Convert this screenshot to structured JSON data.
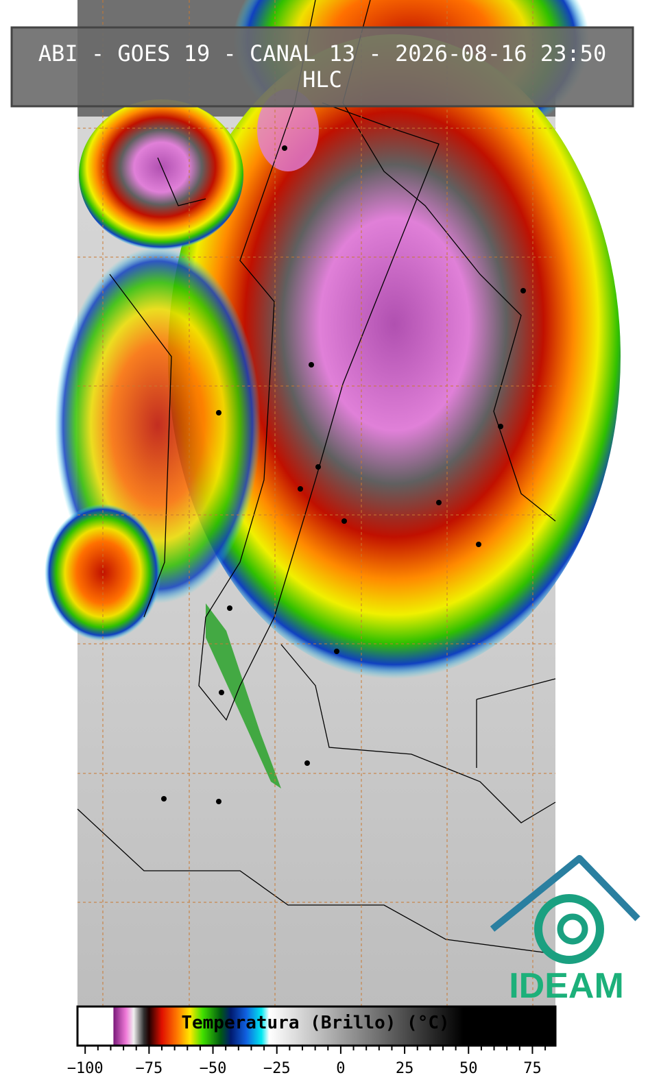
{
  "title": "ABI - GOES 19 - CANAL 13 - 2026-08-16 23:50",
  "subtitle": "HLC",
  "logo": "IDEAM",
  "colorbar": {
    "label": "Temperatura (Brillo) (°C)",
    "xlim": [
      -103,
      84
    ],
    "xticks": [
      {
        "value": -100,
        "label": "−100"
      },
      {
        "value": -75,
        "label": "−75"
      },
      {
        "value": -50,
        "label": "−50"
      },
      {
        "value": -25,
        "label": "−25"
      },
      0,
      25,
      50,
      75
    ],
    "minor_xticks": [
      -95,
      -90,
      -85,
      -80,
      -70,
      -65,
      -60,
      -55,
      -45,
      -40,
      -35,
      -30,
      -20,
      -15,
      -10,
      -5,
      5,
      10,
      15,
      20,
      30,
      35,
      40,
      45,
      55,
      60,
      65,
      70,
      80
    ],
    "colormap": [
      {
        "value": -103,
        "color": "#ffffff"
      },
      {
        "value": -89,
        "color": "#ffffff"
      },
      {
        "value": -88.9,
        "color": "#7a1a7a"
      },
      {
        "value": -84,
        "color": "#f07ad8"
      },
      {
        "value": -81,
        "color": "#f0f0f0"
      },
      {
        "value": -77,
        "color": "#303030"
      },
      {
        "value": -75,
        "color": "#200000"
      },
      {
        "value": -70,
        "color": "#e01000"
      },
      {
        "value": -64,
        "color": "#ff7a00"
      },
      {
        "value": -59,
        "color": "#ffe800"
      },
      {
        "value": -54,
        "color": "#40e000"
      },
      {
        "value": -47,
        "color": "#005a10"
      },
      {
        "value": -43,
        "color": "#001a70"
      },
      {
        "value": -37,
        "color": "#1060e0"
      },
      {
        "value": -31,
        "color": "#00e8f0"
      },
      {
        "value": -28,
        "color": "#ffffff"
      },
      {
        "value": 48,
        "color": "#000000"
      },
      {
        "value": 84,
        "color": "#000000"
      }
    ]
  }
}
